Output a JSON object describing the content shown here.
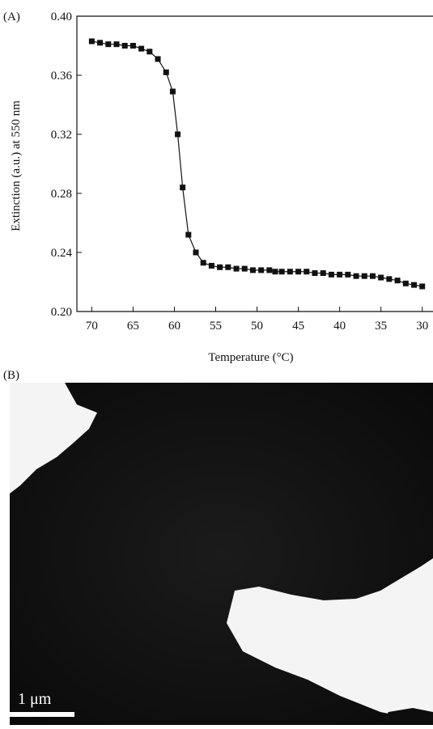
{
  "chart_data": {
    "type": "line",
    "panel_label": "(A)",
    "x_label": "Temperature (°C)",
    "y_label": "Extinction (a.u.) at 550 nm",
    "x": [
      70,
      69,
      68,
      67,
      66,
      65,
      64,
      63,
      62,
      61,
      60.2,
      59.6,
      59,
      58.3,
      57.4,
      56.5,
      55.5,
      54.5,
      53.5,
      52.5,
      51.5,
      50.5,
      49.5,
      48.5,
      47.8,
      47,
      46,
      45,
      44,
      43,
      42,
      41,
      40,
      39,
      38,
      37,
      36,
      35,
      34,
      33,
      32,
      31,
      30
    ],
    "series": [
      {
        "color": "#111111",
        "values": [
          0.383,
          0.382,
          0.381,
          0.381,
          0.38,
          0.38,
          0.378,
          0.376,
          0.371,
          0.362,
          0.349,
          0.32,
          0.284,
          0.252,
          0.24,
          0.233,
          0.231,
          0.23,
          0.23,
          0.229,
          0.229,
          0.228,
          0.228,
          0.228,
          0.227,
          0.227,
          0.227,
          0.227,
          0.227,
          0.226,
          0.226,
          0.225,
          0.225,
          0.225,
          0.224,
          0.224,
          0.224,
          0.223,
          0.222,
          0.221,
          0.219,
          0.218,
          0.217
        ]
      }
    ],
    "xlim": [
      71.8,
      28.7
    ],
    "ylim": [
      0.2,
      0.4
    ],
    "xticks": [
      70,
      65,
      60,
      55,
      50,
      45,
      40,
      35,
      30
    ],
    "yticks": [
      {
        "value": 0.2,
        "label": "0.20"
      },
      {
        "value": 0.24,
        "label": "0.24"
      },
      {
        "value": 0.28,
        "label": "0.28"
      },
      {
        "value": 0.32,
        "label": "0.32"
      },
      {
        "value": 0.36,
        "label": "0.36"
      },
      {
        "value": 0.4,
        "label": "0.40"
      }
    ]
  },
  "micrograph": {
    "panel_label": "(B)",
    "scale_bar": "1 μm"
  }
}
